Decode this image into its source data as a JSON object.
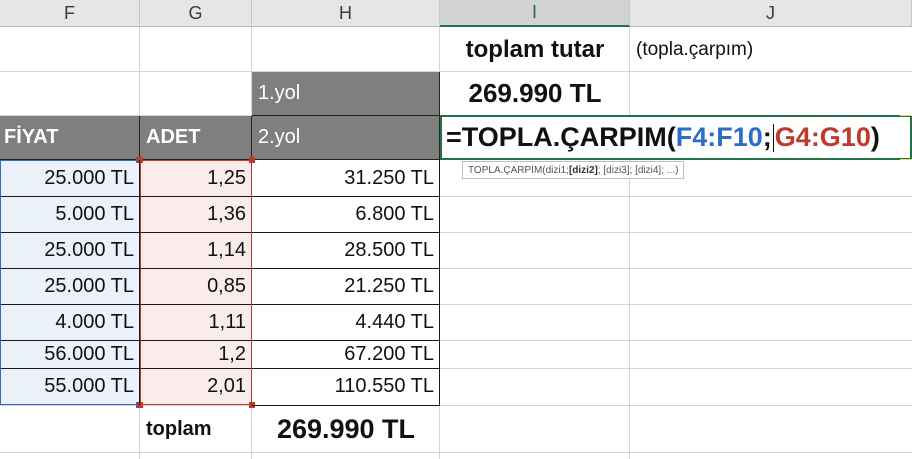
{
  "columns": [
    "F",
    "G",
    "H",
    "I",
    "J"
  ],
  "headers": {
    "price": "FİYAT",
    "quantity": "ADET",
    "method1": "1.yol",
    "method2": "2.yol"
  },
  "prices": [
    "25.000 TL",
    "5.000 TL",
    "25.000 TL",
    "25.000 TL",
    "4.000 TL",
    "56.000 TL",
    "55.000 TL"
  ],
  "quantities": [
    "1,25",
    "1,36",
    "1,14",
    "0,85",
    "1,11",
    "1,2",
    "2,01"
  ],
  "products": [
    "31.250 TL",
    "6.800 TL",
    "28.500 TL",
    "21.250 TL",
    "4.440 TL",
    "67.200 TL",
    "110.550 TL"
  ],
  "total_label": "toplam",
  "total_value": "269.990 TL",
  "summary": {
    "title": "toplam tutar",
    "note": "(topla.çarpım)",
    "value": "269.990 TL"
  },
  "formula": {
    "prefix": "=TOPLA.ÇARPIM(",
    "range1": "F4:F10",
    "separator": ";",
    "range2": "G4:G10",
    "suffix": ")",
    "tooltip_name": "TOPLA.ÇARPIM(dizi1; ",
    "tooltip_active": "[dizi2]",
    "tooltip_rest": "; [dizi3]; [dizi4]; ...)"
  },
  "colors": {
    "range1": "#2e6dc7",
    "range2": "#c0392b",
    "selection": "#217346",
    "header_fill": "#7f7f7f",
    "range1_fill": "#eaf1fb",
    "range2_fill": "#fbecec"
  }
}
